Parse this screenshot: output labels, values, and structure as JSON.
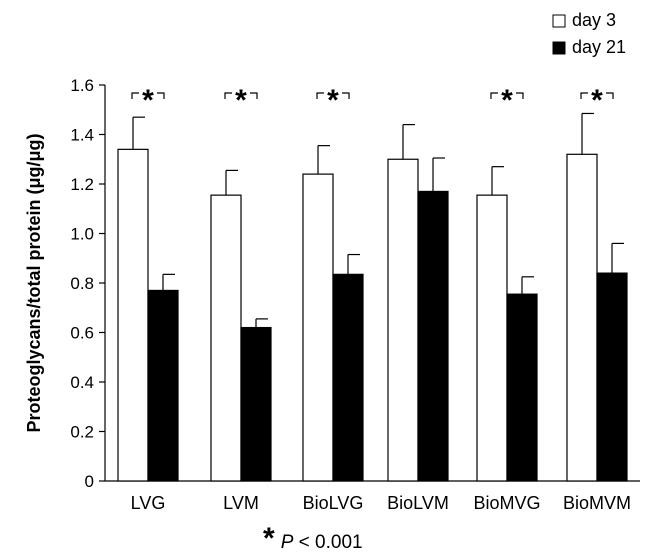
{
  "chart_data": {
    "type": "bar",
    "title": "",
    "xlabel": "",
    "ylabel": "Proteoglycans/total protein (μg/μg)",
    "ylim": [
      0,
      1.6
    ],
    "yticks": [
      "0",
      "0.2",
      "0.4",
      "0.6",
      "0.8",
      "1.0",
      "1.2",
      "1.4",
      "1.6"
    ],
    "categories": [
      "LVG",
      "LVM",
      "BioLVG",
      "BioLVM",
      "BioMVG",
      "BioMVM"
    ],
    "series": [
      {
        "name": "day 3",
        "color": "#ffffff",
        "values": [
          1.34,
          1.155,
          1.24,
          1.3,
          1.155,
          1.32
        ],
        "errors": [
          0.13,
          0.1,
          0.115,
          0.14,
          0.115,
          0.165
        ]
      },
      {
        "name": "day 21",
        "color": "#000000",
        "values": [
          0.77,
          0.62,
          0.835,
          1.17,
          0.755,
          0.84
        ],
        "errors": [
          0.065,
          0.035,
          0.08,
          0.135,
          0.07,
          0.12
        ]
      }
    ],
    "significant": [
      true,
      true,
      true,
      false,
      true,
      true
    ],
    "significance_marker": "*",
    "legend_position": "top-right",
    "footnote_symbol": "*",
    "footnote_p": "P",
    "footnote_rest": " < 0.001"
  }
}
